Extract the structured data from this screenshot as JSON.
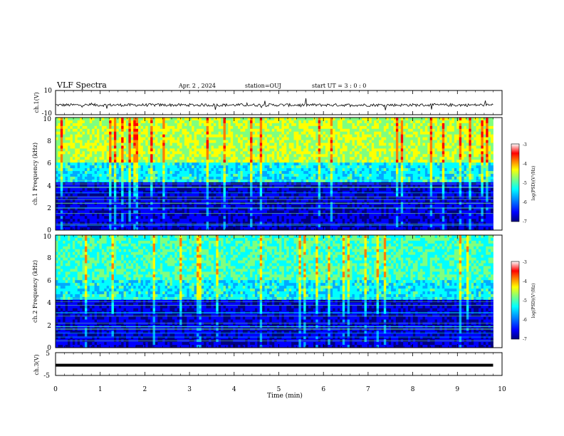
{
  "header": {
    "title": "VLF Spectra",
    "date": "Apr. 2 , 2024",
    "station": "station=OUJ",
    "start": "start UT =  3 : 0 : 0"
  },
  "chart_data": [
    {
      "type": "line",
      "id": "ch1-waveform",
      "ylabel": "ch.1(V)",
      "ylim": [
        -10,
        10
      ],
      "yticks": [
        "10",
        "-10"
      ],
      "xlim": [
        0,
        10
      ],
      "baseline": -2,
      "data_end": 9.8,
      "color": "#000000"
    },
    {
      "type": "heatmap",
      "id": "ch1-spectrogram",
      "ylabel": "ch.1 Frequency (kHz)",
      "ylim": [
        0,
        10
      ],
      "yticks": [
        "0",
        "2",
        "4",
        "6",
        "8",
        "10"
      ],
      "xlim": [
        0,
        10
      ],
      "data_end": 9.8,
      "colorbar": {
        "label": "log(PSD)(V²/Hz)",
        "range": [
          -7,
          -3
        ],
        "ticks": [
          "-3",
          "-4",
          "-5",
          "-6",
          "-7"
        ]
      }
    },
    {
      "type": "heatmap",
      "id": "ch2-spectrogram",
      "ylabel": "ch.2 Frequency (kHz)",
      "ylim": [
        0,
        10
      ],
      "yticks": [
        "0",
        "2",
        "4",
        "6",
        "8",
        "10"
      ],
      "xlim": [
        0,
        10
      ],
      "data_end": 9.8,
      "colorbar": {
        "label": "log(PSD)(V²/Hz)",
        "range": [
          -7,
          -3
        ],
        "ticks": [
          "-3",
          "-4",
          "-5",
          "-6",
          "-7"
        ]
      }
    },
    {
      "type": "line",
      "id": "ch3-waveform",
      "ylabel": "ch.3(V)",
      "ylim": [
        -5,
        5
      ],
      "yticks": [
        "5",
        "-5"
      ],
      "xlim": [
        0,
        10
      ],
      "baseline": -0.5,
      "data_end": 9.8,
      "color": "#000000"
    }
  ],
  "xaxis": {
    "label": "Time (min)",
    "ticks": [
      "0",
      "1",
      "2",
      "3",
      "4",
      "5",
      "6",
      "7",
      "8",
      "9",
      "10"
    ]
  },
  "colors": {
    "colormap": [
      "#00007f",
      "#0000ff",
      "#00aaff",
      "#00ffff",
      "#7fff7f",
      "#ffff00",
      "#ff7f00",
      "#ff0000",
      "#ffffff"
    ]
  }
}
